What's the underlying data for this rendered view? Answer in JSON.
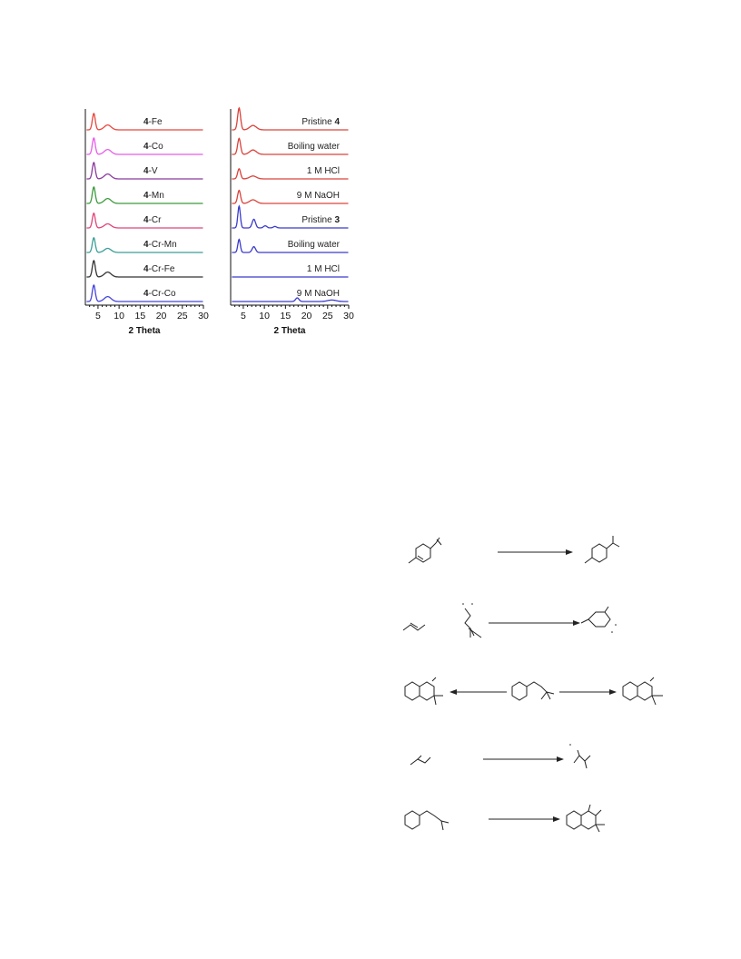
{
  "chart_data": [
    {
      "type": "line",
      "xlabel": "2 Theta",
      "ylabel": "",
      "xlim": [
        2,
        30
      ],
      "x_ticks": [
        5,
        10,
        15,
        20,
        25,
        30
      ],
      "stacked": true,
      "series": [
        {
          "name": "4-Fe",
          "bold_prefix": "4",
          "suffix": "-Fe",
          "color": "#e8463c",
          "peaks": [
            [
              4.0,
              1.0,
              0.35
            ],
            [
              7.3,
              0.3,
              0.8
            ]
          ]
        },
        {
          "name": "4-Co",
          "bold_prefix": "4",
          "suffix": "-Co",
          "color": "#e75ce8",
          "peaks": [
            [
              4.0,
              1.0,
              0.35
            ],
            [
              7.3,
              0.3,
              0.8
            ]
          ]
        },
        {
          "name": "4-V",
          "bold_prefix": "4",
          "suffix": "-V",
          "color": "#8a3a9c",
          "peaks": [
            [
              4.0,
              1.0,
              0.35
            ],
            [
              7.3,
              0.3,
              0.8
            ]
          ]
        },
        {
          "name": "4-Mn",
          "bold_prefix": "4",
          "suffix": "-Mn",
          "color": "#3c9a3c",
          "peaks": [
            [
              4.0,
              1.0,
              0.35
            ],
            [
              7.3,
              0.3,
              0.8
            ]
          ]
        },
        {
          "name": "4-Cr",
          "bold_prefix": "4",
          "suffix": "-Cr",
          "color": "#e0457a",
          "peaks": [
            [
              4.0,
              0.9,
              0.35
            ],
            [
              7.3,
              0.25,
              0.8
            ]
          ]
        },
        {
          "name": "4-Cr-Mn",
          "bold_prefix": "4",
          "suffix": "-Cr-Mn",
          "color": "#3a9e98",
          "peaks": [
            [
              4.0,
              0.9,
              0.35
            ],
            [
              7.3,
              0.25,
              0.8
            ]
          ]
        },
        {
          "name": "4-Cr-Fe",
          "bold_prefix": "4",
          "suffix": "-Cr-Fe",
          "color": "#333333",
          "peaks": [
            [
              4.0,
              1.0,
              0.35
            ],
            [
              7.3,
              0.3,
              0.8
            ]
          ]
        },
        {
          "name": "4-Cr-Co",
          "bold_prefix": "4",
          "suffix": "-Cr-Co",
          "color": "#4444dd",
          "peaks": [
            [
              4.0,
              1.0,
              0.35
            ],
            [
              7.3,
              0.3,
              0.8
            ]
          ]
        }
      ]
    },
    {
      "type": "line",
      "xlabel": "2 Theta",
      "ylabel": "",
      "xlim": [
        2,
        30
      ],
      "x_ticks": [
        5,
        10,
        15,
        20,
        25,
        30
      ],
      "stacked": true,
      "series": [
        {
          "name": "Pristine 4",
          "bold_prefix": "",
          "suffix": "Pristine ",
          "bold_suffix": "4",
          "color": "#d9433b",
          "peaks": [
            [
              4.0,
              1.5,
              0.35
            ],
            [
              7.3,
              0.3,
              0.8
            ]
          ]
        },
        {
          "name": "Boiling water",
          "bold_prefix": "",
          "suffix": "Boiling water",
          "bold_suffix": "",
          "color": "#d9433b",
          "peaks": [
            [
              4.0,
              1.1,
              0.35
            ],
            [
              7.3,
              0.3,
              0.8
            ]
          ]
        },
        {
          "name": "1 M HCl",
          "bold_prefix": "",
          "suffix": "1 M HCl",
          "bold_suffix": "",
          "color": "#d9433b",
          "peaks": [
            [
              4.0,
              0.7,
              0.35
            ],
            [
              7.3,
              0.2,
              0.8
            ]
          ]
        },
        {
          "name": "9 M NaOH",
          "bold_prefix": "",
          "suffix": "9 M NaOH",
          "bold_suffix": "",
          "color": "#d9433b",
          "peaks": [
            [
              4.0,
              0.9,
              0.35
            ],
            [
              7.3,
              0.25,
              0.8
            ]
          ]
        },
        {
          "name": "Pristine 3",
          "bold_prefix": "",
          "suffix": "Pristine ",
          "bold_suffix": "3",
          "color": "#3b3bcc",
          "peaks": [
            [
              4.0,
              1.5,
              0.3
            ],
            [
              7.5,
              0.6,
              0.4
            ],
            [
              10.2,
              0.15,
              0.4
            ],
            [
              12.5,
              0.1,
              0.4
            ]
          ]
        },
        {
          "name": "Boiling water",
          "bold_prefix": "",
          "suffix": "Boiling water",
          "bold_suffix": "",
          "color": "#3b3bcc",
          "peaks": [
            [
              4.0,
              0.9,
              0.3
            ],
            [
              7.5,
              0.4,
              0.4
            ]
          ]
        },
        {
          "name": "1 M HCl",
          "bold_prefix": "",
          "suffix": "1 M HCl",
          "bold_suffix": "",
          "color": "#3b3bcc",
          "peaks": []
        },
        {
          "name": "9 M NaOH",
          "bold_prefix": "",
          "suffix": "9 M NaOH",
          "bold_suffix": "",
          "color": "#3b3bcc",
          "peaks": [
            [
              17.8,
              0.25,
              0.4
            ],
            [
              26.0,
              0.1,
              1.0
            ]
          ]
        }
      ]
    }
  ]
}
